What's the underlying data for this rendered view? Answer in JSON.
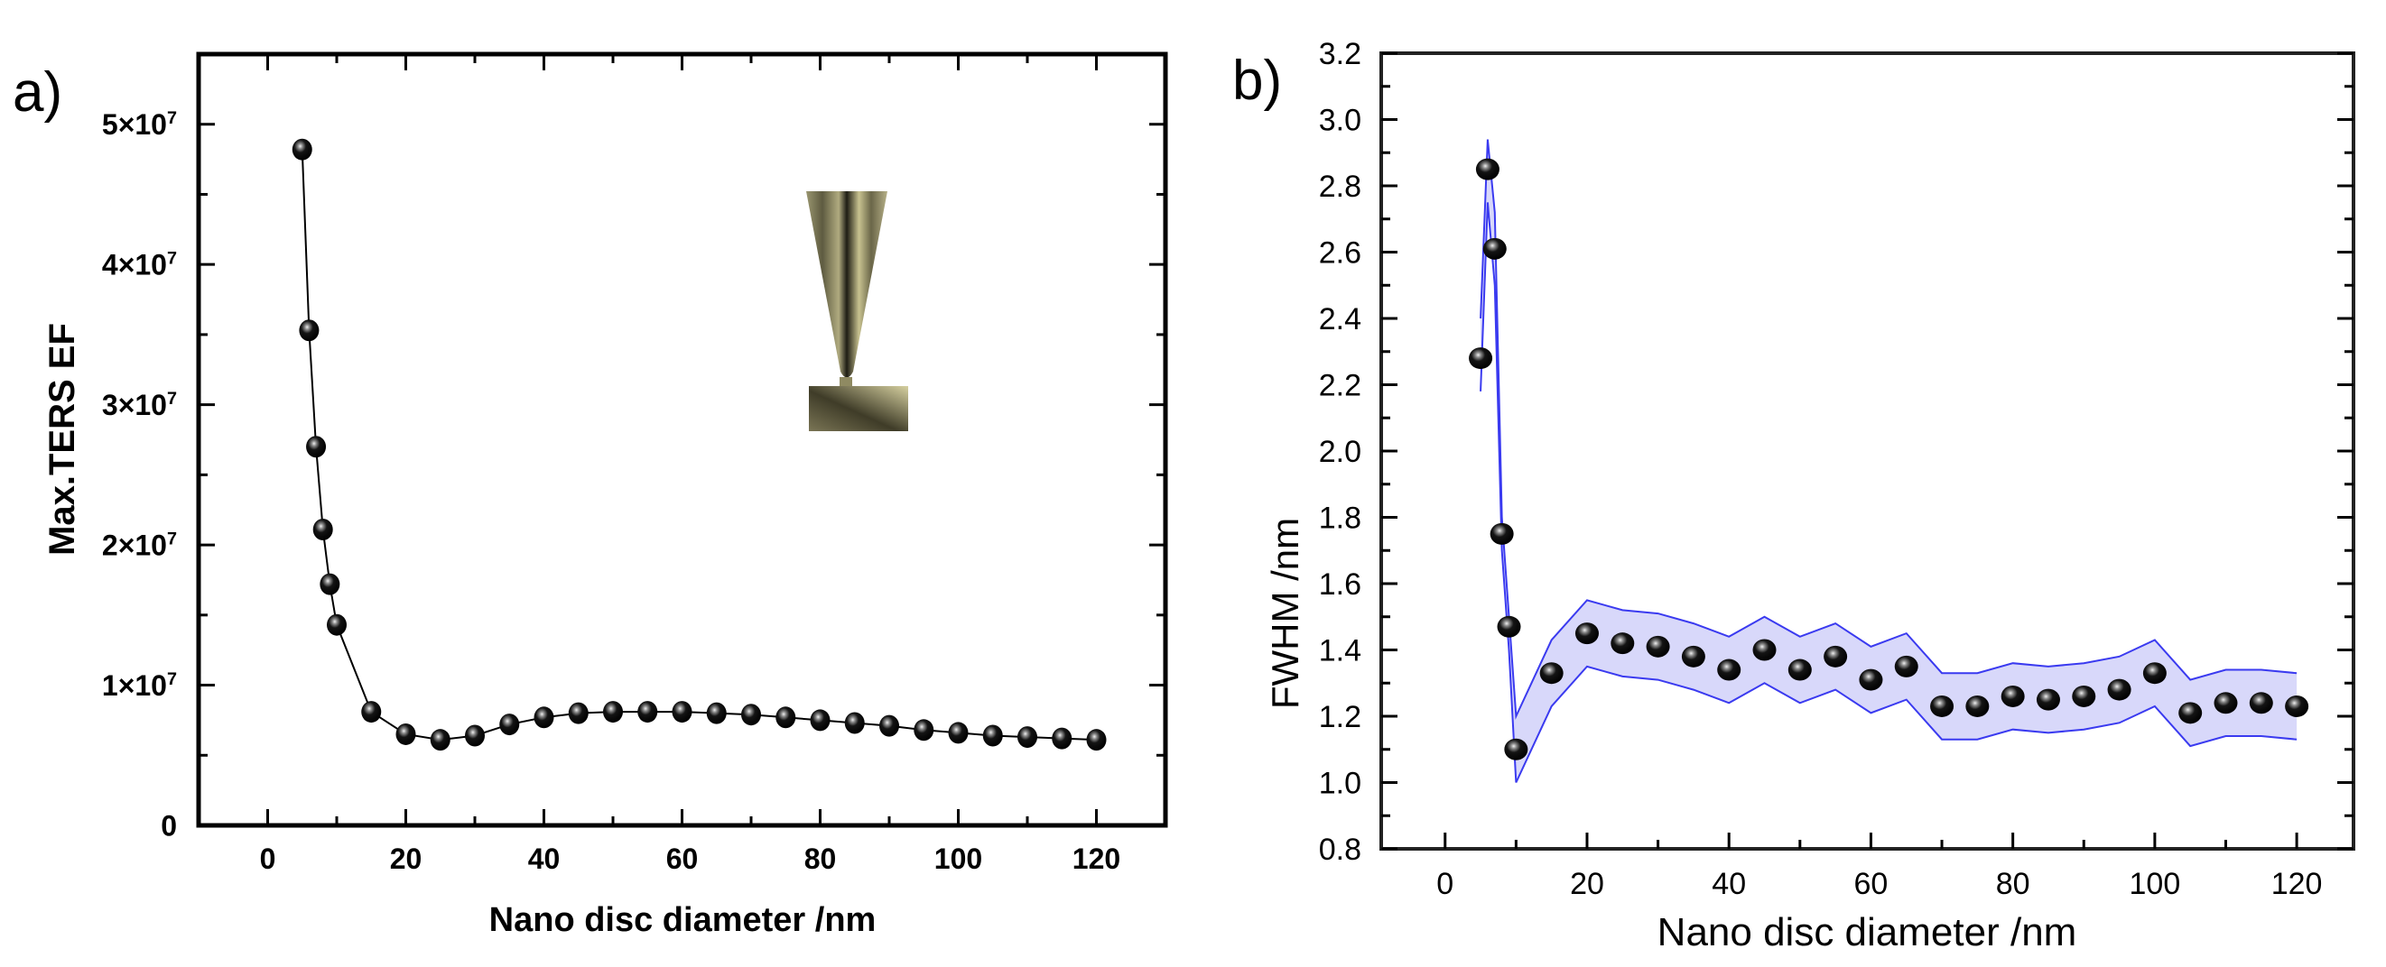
{
  "chart_data": [
    {
      "panel_label": "a)",
      "type": "line",
      "xlabel": "Nano disc diameter /nm",
      "ylabel": "Max.TERS EF",
      "xlim": [
        -10,
        130
      ],
      "ylim": [
        0,
        55000000
      ],
      "xticks": [
        0,
        20,
        40,
        60,
        80,
        100,
        120
      ],
      "xtick_labels": [
        "0",
        "20",
        "40",
        "60",
        "80",
        "100",
        "120"
      ],
      "yticks": [
        0,
        10000000,
        20000000,
        30000000,
        40000000,
        50000000
      ],
      "ytick_labels": [
        {
          "mant": "0",
          "exp": ""
        },
        {
          "mant": "1×10",
          "exp": "7"
        },
        {
          "mant": "2×10",
          "exp": "7"
        },
        {
          "mant": "3×10",
          "exp": "7"
        },
        {
          "mant": "4×10",
          "exp": "7"
        },
        {
          "mant": "5×10",
          "exp": "7"
        }
      ],
      "grid": false,
      "marker": "black-sphere",
      "line_color": "#000000",
      "x": [
        5,
        6,
        7,
        8,
        9,
        10,
        15,
        20,
        25,
        30,
        35,
        40,
        45,
        50,
        55,
        60,
        65,
        70,
        75,
        80,
        85,
        90,
        95,
        100,
        105,
        110,
        115,
        120
      ],
      "y": [
        48200000,
        35300000,
        27000000,
        21100000,
        17200000,
        14300000,
        8100000,
        6500000,
        6100000,
        6400000,
        7200000,
        7700000,
        8000000,
        8100000,
        8100000,
        8100000,
        8000000,
        7900000,
        7700000,
        7500000,
        7300000,
        7100000,
        6800000,
        6600000,
        6400000,
        6300000,
        6200000,
        6100000
      ],
      "inset": "tip-over-substrate-illustration"
    },
    {
      "panel_label": "b)",
      "type": "scatter",
      "xlabel": "Nano disc diameter /nm",
      "ylabel": "FWHM /nm",
      "xlim": [
        -9,
        128
      ],
      "ylim": [
        0.8,
        3.2
      ],
      "xticks": [
        0,
        20,
        40,
        60,
        80,
        100,
        120
      ],
      "xtick_labels": [
        "0",
        "20",
        "40",
        "60",
        "80",
        "100",
        "120"
      ],
      "yticks": [
        0.8,
        1.0,
        1.2,
        1.4,
        1.6,
        1.8,
        2.0,
        2.2,
        2.4,
        2.6,
        2.8,
        3.0,
        3.2
      ],
      "ytick_labels": [
        "0.8",
        "1.0",
        "1.2",
        "1.4",
        "1.6",
        "1.8",
        "2.0",
        "2.2",
        "2.4",
        "2.6",
        "2.8",
        "3.0",
        "3.2"
      ],
      "grid": false,
      "marker": "black-sphere",
      "band_color": "#d4d4fa",
      "band_line_color": "#3a3af0",
      "x": [
        5,
        6,
        7,
        8,
        9,
        10,
        15,
        20,
        25,
        30,
        35,
        40,
        45,
        50,
        55,
        60,
        65,
        70,
        75,
        80,
        85,
        90,
        95,
        100,
        105,
        110,
        115,
        120
      ],
      "y": [
        2.28,
        2.85,
        2.61,
        1.75,
        1.47,
        1.1,
        1.33,
        1.45,
        1.42,
        1.41,
        1.38,
        1.34,
        1.4,
        1.34,
        1.38,
        1.31,
        1.35,
        1.23,
        1.23,
        1.26,
        1.25,
        1.26,
        1.28,
        1.33,
        1.21,
        1.24,
        1.24,
        1.23
      ],
      "band_upper": [
        2.4,
        2.94,
        2.72,
        1.8,
        1.5,
        1.2,
        1.43,
        1.55,
        1.52,
        1.51,
        1.48,
        1.44,
        1.5,
        1.44,
        1.48,
        1.41,
        1.45,
        1.33,
        1.33,
        1.36,
        1.35,
        1.36,
        1.38,
        1.43,
        1.31,
        1.34,
        1.34,
        1.33
      ],
      "band_lower": [
        2.18,
        2.75,
        2.5,
        1.7,
        1.4,
        1.0,
        1.23,
        1.35,
        1.32,
        1.31,
        1.28,
        1.24,
        1.3,
        1.24,
        1.28,
        1.21,
        1.25,
        1.13,
        1.13,
        1.16,
        1.15,
        1.16,
        1.18,
        1.23,
        1.11,
        1.14,
        1.14,
        1.13
      ]
    }
  ]
}
